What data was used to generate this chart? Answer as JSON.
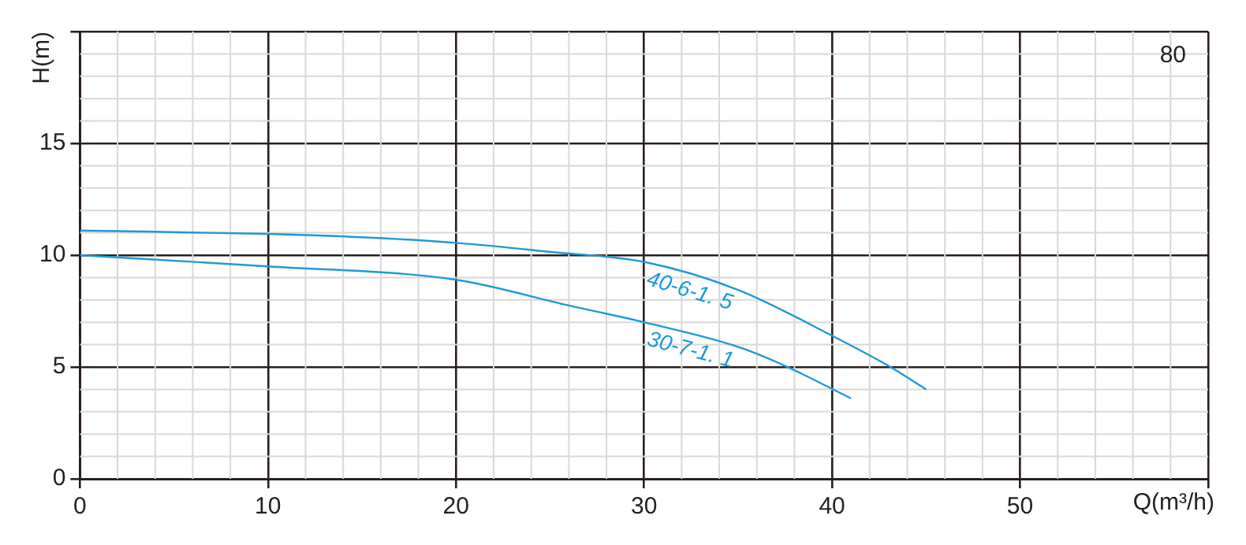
{
  "chart_data": {
    "type": "line",
    "xlabel": "Q(m³/h)",
    "ylabel": "H(m)",
    "annotations": [
      "80"
    ],
    "xlim": [
      0,
      60
    ],
    "xticks": [
      0,
      10,
      20,
      30,
      40,
      50,
      {
        "value": 60,
        "label": null
      }
    ],
    "ylim": [
      0,
      20
    ],
    "yticks": [
      0,
      5,
      10,
      15,
      {
        "value": 20,
        "label": null
      }
    ],
    "grid": true,
    "legend": false,
    "marker": "none",
    "line_style": "solid",
    "series": [
      {
        "name": "40-6-1. 5",
        "color": "#1e9ad8",
        "x": [
          0,
          10,
          15,
          20,
          25,
          30,
          35,
          40,
          43,
          45
        ],
        "values": [
          11.1,
          10.95,
          10.8,
          10.55,
          10.15,
          9.7,
          8.45,
          6.4,
          5.05,
          4.0
        ]
      },
      {
        "name": "30-7-1. 1",
        "color": "#1e9ad8",
        "x": [
          0,
          10,
          20,
          26,
          30,
          35,
          37.5,
          41
        ],
        "values": [
          10.0,
          9.5,
          8.9,
          7.75,
          7.0,
          5.9,
          5.05,
          3.6
        ]
      }
    ]
  }
}
